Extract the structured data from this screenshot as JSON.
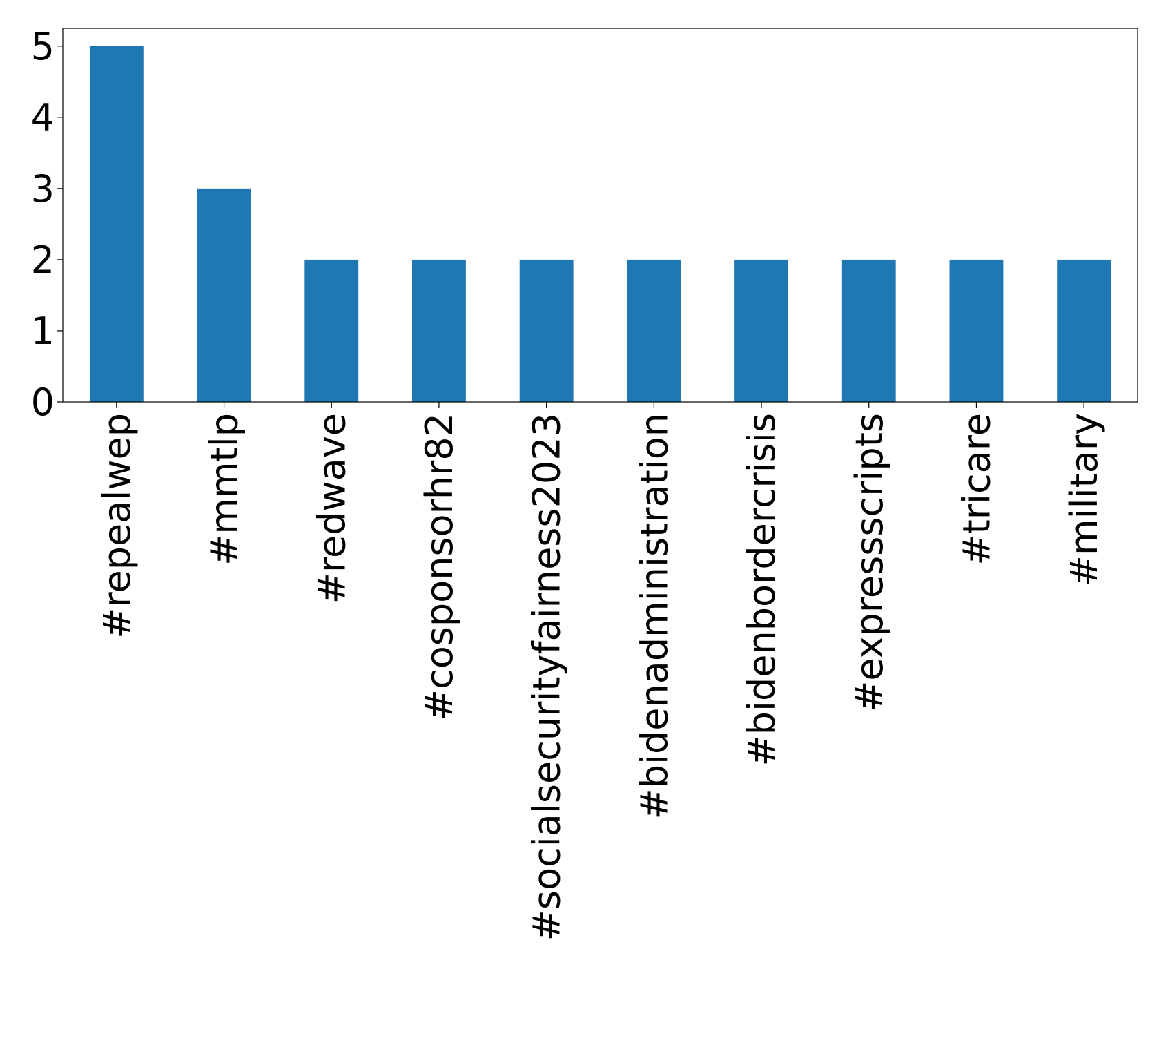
{
  "chart_data": {
    "type": "bar",
    "categories": [
      "#repealwep",
      "#mmtlp",
      "#redwave",
      "#cosponsorhr82",
      "#socialsecurityfairness2023",
      "#bidenadministration",
      "#bidenbordercrisis",
      "#expressscripts",
      "#tricare",
      "#military"
    ],
    "values": [
      5,
      3,
      2,
      2,
      2,
      2,
      2,
      2,
      2,
      2
    ],
    "color": "#1f77b4",
    "ylim": [
      0,
      5.25
    ],
    "yticks": [
      0,
      1,
      2,
      3,
      4,
      5
    ],
    "grid": false
  }
}
